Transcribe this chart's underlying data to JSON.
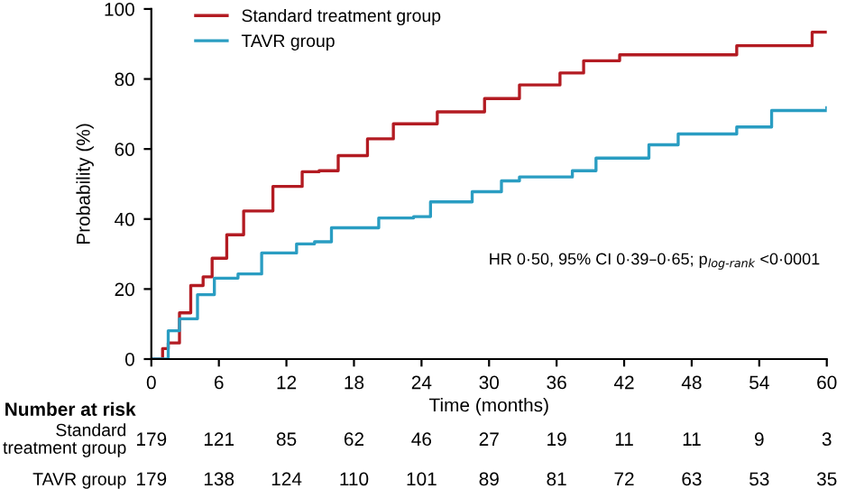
{
  "chart_data": {
    "type": "step",
    "xlabel": "Time (months)",
    "ylabel": "Probability (%)",
    "series": [
      {
        "name": "Standard treatment group",
        "color": "#b31b22",
        "x": [
          0,
          1,
          1.5,
          2.5,
          3.5,
          4.6,
          5.4,
          6.7,
          8.2,
          10.8,
          13.4,
          14.9,
          16.6,
          19.2,
          21.5,
          25.4,
          29.6,
          32.7,
          36.3,
          38.4,
          41.6,
          49.9,
          52,
          56.1,
          58.7,
          60
        ],
        "values": [
          0,
          3,
          4.6,
          13.2,
          21,
          23.5,
          28.8,
          35.5,
          42.3,
          49.3,
          53.5,
          53.8,
          58.1,
          62.9,
          67.2,
          70.6,
          74.4,
          78.3,
          81.7,
          85.2,
          86.9,
          86.9,
          89.5,
          89.5,
          93.4,
          93.4
        ]
      },
      {
        "name": "TAVR group",
        "color": "#2a9dc2",
        "x": [
          0,
          1.5,
          2.5,
          4.1,
          5.6,
          7.7,
          9.8,
          12.9,
          14.5,
          16.0,
          20.2,
          23.3,
          24.8,
          28.5,
          31.1,
          32.7,
          37.4,
          39.5,
          44.2,
          46.8,
          52,
          55.1,
          60
        ],
        "values": [
          0,
          8.1,
          11.5,
          18.4,
          23.1,
          24.3,
          30.3,
          32.9,
          33.5,
          37.5,
          40.3,
          40.7,
          44.9,
          47.8,
          50.9,
          52,
          53.8,
          57.4,
          61.2,
          64.3,
          66.3,
          71,
          71.8
        ]
      }
    ],
    "xlim": [
      0,
      60
    ],
    "xticks": [
      0,
      6,
      12,
      18,
      24,
      30,
      36,
      42,
      48,
      54,
      60
    ],
    "ylim": [
      0,
      100
    ],
    "yticks": [
      0,
      20,
      40,
      60,
      80,
      100
    ],
    "legend": "top left",
    "grid": false,
    "annotations": [
      "HR 0·50, 95% CI 0·39–0·65; p$_{log‐rank}$ <0·0001",
      "Number at risk",
      "Standard\ntreatment group",
      "179",
      "121",
      "85",
      "62",
      "46",
      "27",
      "19",
      "11",
      "11",
      "9",
      "3",
      "TAVR group",
      "179",
      "138",
      "124",
      "110",
      "101",
      "89",
      "81",
      "72",
      "63",
      "53",
      "35"
    ]
  }
}
